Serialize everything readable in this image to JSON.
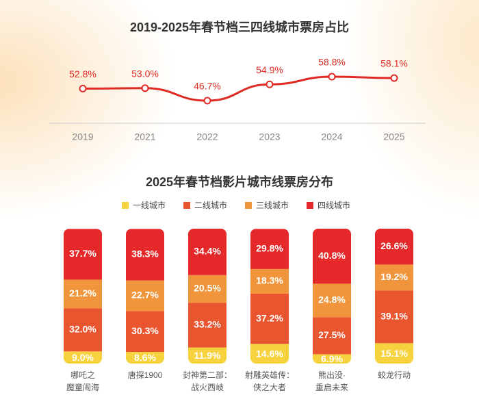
{
  "chart_data": [
    {
      "type": "line",
      "title": "2019-2025年春节档三四线城市票房占比",
      "categories": [
        "2019",
        "2021",
        "2022",
        "2023",
        "2024",
        "2025"
      ],
      "values": [
        52.8,
        53.0,
        46.7,
        54.9,
        58.8,
        58.1
      ],
      "value_labels": [
        "52.8%",
        "53.0%",
        "46.7%",
        "54.9%",
        "58.8%",
        "58.1%"
      ],
      "color": "#e02a24"
    },
    {
      "type": "stacked-bar",
      "title": "2025年春节档影片城市线票房分布",
      "categories": [
        "哪吒之\n魔童闹海",
        "唐探1900",
        "封神第二部：\n战火西岐",
        "射雕英雄传：\n侠之大者",
        "熊出没·\n重启未来",
        "蛟龙行动"
      ],
      "series": [
        {
          "name": "一线城市",
          "color": "#f6d33e",
          "values": [
            9.0,
            8.6,
            11.9,
            14.6,
            6.9,
            15.1
          ],
          "value_labels": [
            "9.0%",
            "8.6%",
            "11.9%",
            "14.6%",
            "6.9%",
            "15.1%"
          ]
        },
        {
          "name": "二线城市",
          "color": "#e9552f",
          "values": [
            32.0,
            30.3,
            33.2,
            37.2,
            27.5,
            39.1
          ],
          "value_labels": [
            "32.0%",
            "30.3%",
            "33.2%",
            "37.2%",
            "27.5%",
            "39.1%"
          ]
        },
        {
          "name": "三线城市",
          "color": "#f0953b",
          "values": [
            21.2,
            22.7,
            20.5,
            18.3,
            24.8,
            19.2
          ],
          "value_labels": [
            "21.2%",
            "22.7%",
            "20.5%",
            "18.3%",
            "24.8%",
            "19.2%"
          ]
        },
        {
          "name": "四线城市",
          "color": "#e5292a",
          "values": [
            37.7,
            38.3,
            34.4,
            29.8,
            40.8,
            26.6
          ],
          "value_labels": [
            "37.7%",
            "38.3%",
            "34.4%",
            "29.8%",
            "40.8%",
            "26.6%"
          ]
        }
      ]
    }
  ]
}
